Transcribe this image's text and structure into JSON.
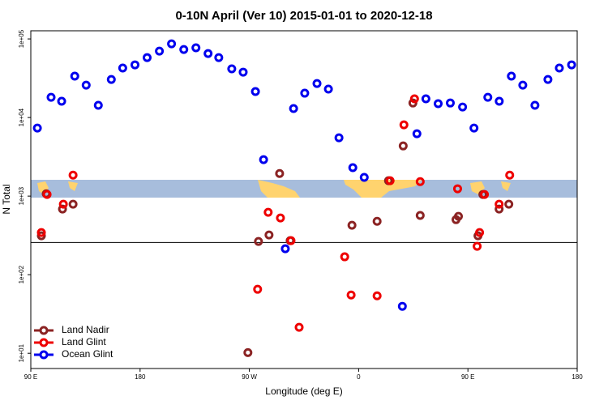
{
  "chart_data": {
    "type": "scatter",
    "title": "0-10N April (Ver 10)   2015-01-01 to 2020-12-18",
    "x_label": "Longitude (deg E)",
    "y_label": "N Total",
    "log_y": true,
    "legend": "bottom-left",
    "xlim": [
      90,
      540
    ],
    "xticks": [
      {
        "value": 90,
        "label": "90 E"
      },
      180,
      {
        "value": 270,
        "label": "90 W"
      },
      {
        "value": 360,
        "label": "0"
      },
      {
        "value": 450,
        "label": "90 E"
      },
      {
        "value": 540,
        "label": "180"
      }
    ],
    "ylim": [
      6.4,
      127000
    ],
    "yticks": [
      {
        "value": 10,
        "label": "1e+01"
      },
      {
        "value": 100,
        "label": "1e+02"
      },
      {
        "value": 1000,
        "label": "1e+03"
      },
      {
        "value": 10000,
        "label": "1e+04"
      },
      {
        "value": 100000,
        "label": "1e+05"
      }
    ],
    "reference_line": 257,
    "series": [
      {
        "name": "Land Nadir",
        "color": "#8b2323",
        "x": [
          98.7,
          102.7,
          116.1,
          124.8,
          268.8,
          277.5,
          286.2,
          294.9,
          303.6,
          354.5,
          375.2,
          384.6,
          396.7,
          404.7,
          410.7,
          440.2,
          442.2,
          458.3,
          462.3,
          475.7,
          483.7
        ],
        "values": [
          313,
          1070,
          684,
          789,
          10.2,
          265,
          320,
          1940,
          271,
          426,
          478,
          1570,
          4350,
          15300,
          567,
          502,
          553,
          313,
          1050,
          684,
          789
        ]
      },
      {
        "name": "Land Glint",
        "color": "#ee0000",
        "x": [
          98.7,
          103.4,
          116.8,
          124.8,
          276.8,
          285.5,
          295.6,
          304.3,
          311,
          348.5,
          353.8,
          375.2,
          385.9,
          397.3,
          406,
          410.7,
          441.5,
          457.6,
          459.6,
          463.6,
          475.7,
          484.4
        ],
        "values": [
          344,
          1050,
          789,
          1850,
          65.2,
          622,
          527,
          271,
          21.4,
          169,
          55.2,
          53.9,
          1570,
          8070,
          17300,
          1530,
          1240,
          230,
          344,
          1050,
          789,
          1850
        ]
      },
      {
        "name": "Ocean Glint",
        "color": "#0000ee",
        "x": [
          95.4,
          106.7,
          115.4,
          126.2,
          135.6,
          145.6,
          156.3,
          165.7,
          175.8,
          185.8,
          195.9,
          205.9,
          216,
          226,
          236,
          244.8,
          255.5,
          264.9,
          275,
          281.7,
          299.6,
          306.4,
          315.6,
          325.7,
          335.1,
          343.8,
          355.2,
          364.6,
          396,
          408,
          415.4,
          425.5,
          435.5,
          445.6,
          455,
          466.4,
          475.8,
          485.8,
          495.2,
          505.2,
          515.9,
          525.3,
          535.4
        ],
        "values": [
          7340,
          18100,
          16100,
          33600,
          25800,
          14300,
          30500,
          42600,
          46800,
          57900,
          70000,
          86700,
          73400,
          77100,
          65200,
          57900,
          41600,
          37800,
          21400,
          2910,
          214,
          13000,
          20400,
          27100,
          23000,
          5520,
          2300,
          1730,
          39.6,
          6220,
          17300,
          15000,
          15300,
          13600,
          7340,
          18100,
          16100,
          33600,
          25800,
          14300,
          30500,
          42600,
          46800
        ]
      }
    ]
  }
}
